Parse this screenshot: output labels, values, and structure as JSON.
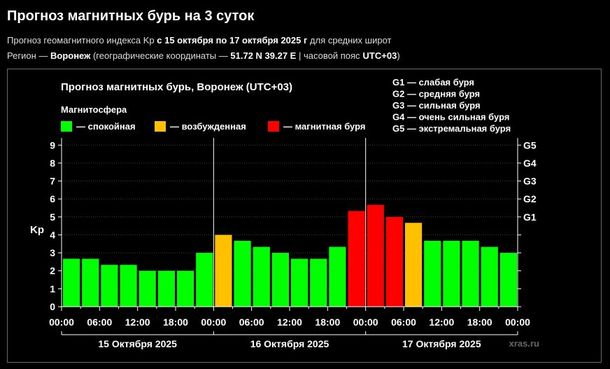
{
  "header": {
    "title": "Прогноз магнитных бурь на 3 суток",
    "line1": {
      "prefix": "Прогноз геомагнитного индекса Kp",
      "dates": "с 15 октября по 17 октября 2025 г",
      "suffix": "для средних широт"
    },
    "line2": {
      "prefix": "Регион —",
      "region": "Воронеж",
      "coords_prefix": "(географические координаты —",
      "coords": "51.72 N 39.27 E",
      "tz_prefix": "| часовой пояс",
      "tz": "UTC+03",
      "close": ")"
    }
  },
  "chart_data": {
    "type": "bar",
    "title": "Прогноз магнитных бурь, Воронеж (UTC+03)",
    "ylabel": "Kp",
    "ylim": [
      0,
      9.4
    ],
    "yticks": [
      0,
      1,
      2,
      3,
      4,
      5,
      6,
      7,
      8,
      9
    ],
    "g_levels": [
      {
        "label": "G1",
        "kp": 5
      },
      {
        "label": "G2",
        "kp": 6
      },
      {
        "label": "G3",
        "kp": 7
      },
      {
        "label": "G4",
        "kp": 8
      },
      {
        "label": "G5",
        "kp": 9
      }
    ],
    "g_legend": [
      "G1 — слабая буря",
      "G2 — средняя буря",
      "G3 — сильная буря",
      "G4 — очень сильная буря",
      "G5 — экстремальная буря"
    ],
    "legend_title": "Магнитосфера",
    "legend": [
      {
        "label": "— спокойная",
        "color": "#00ff00"
      },
      {
        "label": "— возбужденная",
        "color": "#ffc000"
      },
      {
        "label": "— магнитная буря",
        "color": "#ff0000"
      }
    ],
    "xticks": [
      "00:00",
      "06:00",
      "12:00",
      "18:00",
      "00:00",
      "06:00",
      "12:00",
      "18:00",
      "00:00",
      "06:00",
      "12:00",
      "18:00",
      "00:00"
    ],
    "days": [
      "15 Октября 2025",
      "16 Октября 2025",
      "17 Октября 2025"
    ],
    "values": [
      2.67,
      2.67,
      2.33,
      2.33,
      2.0,
      2.0,
      2.0,
      3.0,
      4.0,
      3.67,
      3.33,
      3.0,
      2.67,
      2.67,
      3.33,
      5.33,
      5.67,
      5.0,
      4.67,
      3.67,
      3.67,
      3.67,
      3.33,
      3.0
    ],
    "colors": [
      "#00ff00",
      "#00ff00",
      "#00ff00",
      "#00ff00",
      "#00ff00",
      "#00ff00",
      "#00ff00",
      "#00ff00",
      "#ffc000",
      "#00ff00",
      "#00ff00",
      "#00ff00",
      "#00ff00",
      "#00ff00",
      "#00ff00",
      "#ff0000",
      "#ff0000",
      "#ff0000",
      "#ffc000",
      "#00ff00",
      "#00ff00",
      "#00ff00",
      "#00ff00",
      "#00ff00"
    ],
    "grid": true,
    "watermark": "xras.ru"
  }
}
